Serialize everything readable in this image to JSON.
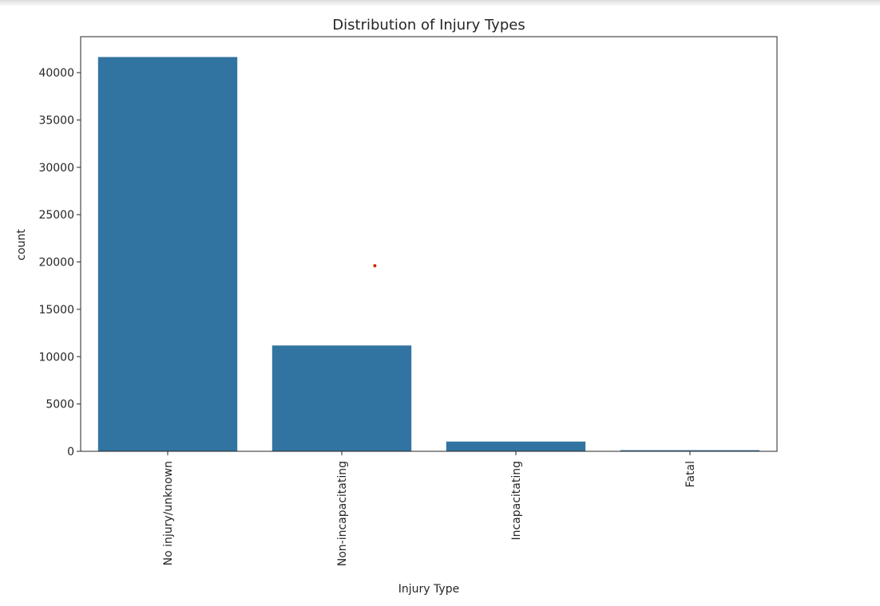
{
  "chart_data": {
    "type": "bar",
    "title": "Distribution of Injury Types",
    "xlabel": "Injury Type",
    "ylabel": "count",
    "categories": [
      "No injury/unknown",
      "Non-incapacitating",
      "Incapacitating",
      "Fatal"
    ],
    "values": [
      41650,
      11180,
      1030,
      120
    ],
    "ylim": [
      0,
      43800
    ],
    "yticks": [
      "0",
      "5000",
      "10000",
      "15000",
      "20000",
      "25000",
      "30000",
      "35000",
      "40000"
    ],
    "bar_color": "#3274a1",
    "grid": false,
    "legend": "none",
    "annotations": [
      {
        "type": "point",
        "x_category_position": 1.19,
        "y": 19600,
        "color": "#cc2200"
      }
    ]
  }
}
